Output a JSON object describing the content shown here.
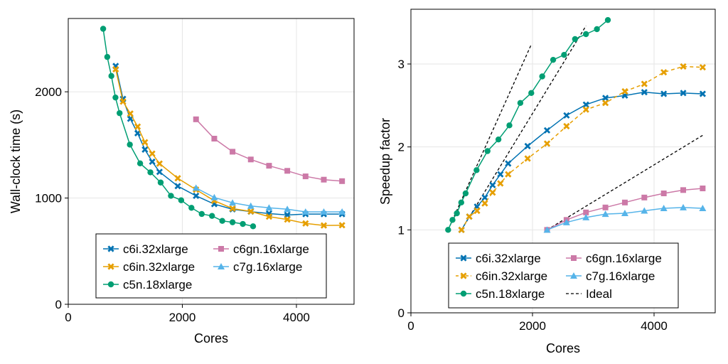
{
  "chart_data": [
    {
      "type": "line",
      "xlabel": "Cores",
      "ylabel": "Wall-clock time (s)",
      "xlim": [
        0,
        5010
      ],
      "ylim": [
        0,
        2690
      ],
      "xticks": [
        0,
        2000,
        4000
      ],
      "yticks": [
        0,
        1000,
        2000
      ],
      "grid": true,
      "legend_position": "bottom-center",
      "series": [
        {
          "name": "c6i.32xlarge",
          "color": "#0072B2",
          "marker": "cross",
          "dash": false,
          "x": [
            832,
            960,
            1088,
            1216,
            1344,
            1472,
            1600,
            1920,
            2240,
            2560,
            2880,
            3200,
            3520,
            3840,
            4160,
            4480,
            4800
          ],
          "y": [
            2243,
            1933,
            1746,
            1610,
            1456,
            1342,
            1246,
            1112,
            1021,
            943,
            894,
            872,
            854,
            841,
            849,
            849,
            849
          ]
        },
        {
          "name": "c6in.32xlarge",
          "color": "#E69F00",
          "marker": "cross",
          "dash": false,
          "x": [
            832,
            960,
            1088,
            1216,
            1344,
            1472,
            1600,
            1920,
            2240,
            2560,
            2880,
            3200,
            3520,
            3840,
            4160,
            4480,
            4800
          ],
          "y": [
            2212,
            1908,
            1795,
            1672,
            1525,
            1418,
            1324,
            1186,
            1079,
            975,
            901,
            874,
            825,
            798,
            761,
            742,
            744
          ]
        },
        {
          "name": "c5n.18xlarge",
          "color": "#009E73",
          "marker": "circle",
          "dash": false,
          "x": [
            612,
            684,
            756,
            828,
            900,
            1080,
            1260,
            1440,
            1620,
            1800,
            1980,
            2160,
            2340,
            2520,
            2700,
            2880,
            3060,
            3240
          ],
          "y": [
            2593,
            2328,
            2149,
            1946,
            1799,
            1503,
            1326,
            1242,
            1146,
            1021,
            979,
            908,
            850,
            832,
            785,
            772,
            756,
            734
          ]
        },
        {
          "name": "c6gn.16xlarge",
          "color": "#CC79A7",
          "marker": "square",
          "dash": false,
          "x": [
            2240,
            2560,
            2880,
            3200,
            3520,
            3840,
            4160,
            4480,
            4800
          ],
          "y": [
            1741,
            1559,
            1436,
            1363,
            1304,
            1256,
            1204,
            1173,
            1159
          ]
        },
        {
          "name": "c7g.16xlarge",
          "color": "#56B4E9",
          "marker": "triangle",
          "dash": false,
          "x": [
            2240,
            2560,
            2880,
            3200,
            3520,
            3840,
            4160,
            4480,
            4800
          ],
          "y": [
            1095,
            1005,
            955,
            925,
            908,
            895,
            870,
            870,
            870
          ]
        }
      ]
    },
    {
      "type": "line",
      "xlabel": "Cores",
      "ylabel": "Speedup factor",
      "xlim": [
        0,
        5006
      ],
      "ylim": [
        0,
        3.66
      ],
      "xticks": [
        0,
        2000,
        4000
      ],
      "yticks": [
        0,
        1,
        2,
        3
      ],
      "grid": true,
      "legend_position": "bottom-center",
      "series": [
        {
          "name": "c6i.32xlarge",
          "color": "#0072B2",
          "marker": "cross",
          "dash": false,
          "x": [
            832,
            960,
            1088,
            1216,
            1344,
            1472,
            1600,
            1920,
            2240,
            2560,
            2880,
            3200,
            3520,
            3840,
            4160,
            4480,
            4800
          ],
          "y": [
            1,
            1.16,
            1.28,
            1.39,
            1.54,
            1.67,
            1.8,
            2.01,
            2.2,
            2.38,
            2.51,
            2.59,
            2.62,
            2.66,
            2.64,
            2.65,
            2.64
          ]
        },
        {
          "name": "c6in.32xlarge",
          "color": "#E69F00",
          "marker": "cross",
          "dash": true,
          "x": [
            832,
            960,
            1088,
            1216,
            1344,
            1472,
            1600,
            1920,
            2240,
            2560,
            2880,
            3200,
            3520,
            3840,
            4160,
            4480,
            4800
          ],
          "y": [
            1,
            1.16,
            1.23,
            1.32,
            1.45,
            1.56,
            1.67,
            1.86,
            2.04,
            2.25,
            2.45,
            2.53,
            2.67,
            2.76,
            2.9,
            2.97,
            2.96
          ]
        },
        {
          "name": "c5n.18xlarge",
          "color": "#009E73",
          "marker": "circle",
          "dash": false,
          "x": [
            612,
            684,
            756,
            828,
            900,
            1080,
            1260,
            1440,
            1620,
            1800,
            1980,
            2160,
            2340,
            2520,
            2700,
            2880,
            3060,
            3240
          ],
          "y": [
            1,
            1.12,
            1.2,
            1.33,
            1.44,
            1.72,
            1.95,
            2.09,
            2.26,
            2.53,
            2.65,
            2.85,
            3.05,
            3.11,
            3.3,
            3.36,
            3.42,
            3.53
          ]
        },
        {
          "name": "c6gn.16xlarge",
          "color": "#CC79A7",
          "marker": "square",
          "dash": false,
          "x": [
            2240,
            2560,
            2880,
            3200,
            3520,
            3840,
            4160,
            4480,
            4800
          ],
          "y": [
            1,
            1.12,
            1.21,
            1.27,
            1.33,
            1.39,
            1.44,
            1.48,
            1.5
          ]
        },
        {
          "name": "c7g.16xlarge",
          "color": "#56B4E9",
          "marker": "triangle",
          "dash": false,
          "x": [
            2240,
            2560,
            2880,
            3200,
            3520,
            3840,
            4160,
            4480,
            4800
          ],
          "y": [
            1,
            1.09,
            1.15,
            1.19,
            1.2,
            1.23,
            1.26,
            1.27,
            1.26
          ]
        }
      ],
      "ideal": {
        "name": "Ideal",
        "color": "#000000",
        "lines": [
          {
            "x": [
              612,
              1980
            ],
            "y": [
              1,
              3.235
            ]
          },
          {
            "x": [
              832,
              2880
            ],
            "y": [
              1,
              3.46
            ]
          },
          {
            "x": [
              2240,
              4800
            ],
            "y": [
              1,
              2.14
            ]
          }
        ]
      }
    }
  ]
}
